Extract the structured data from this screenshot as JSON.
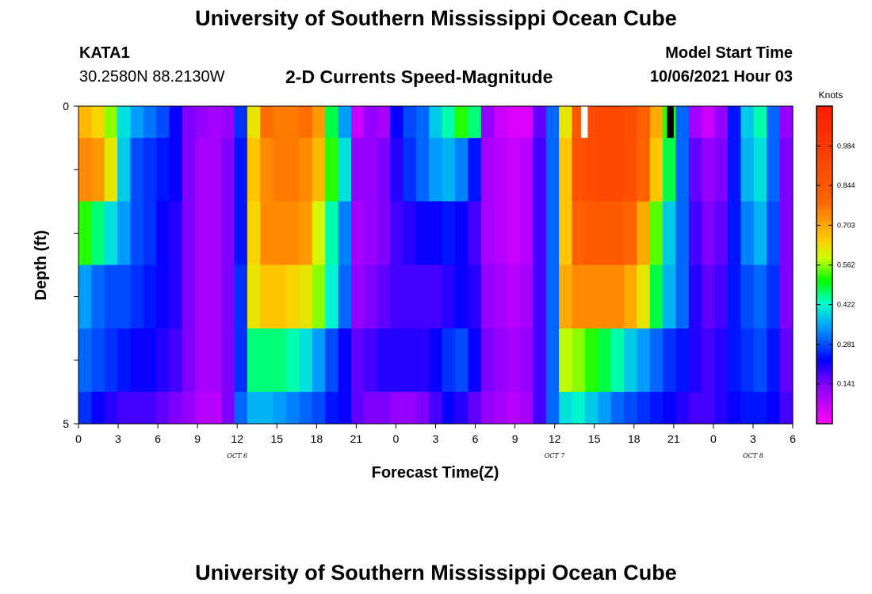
{
  "header": {
    "title": "University of Southern Mississippi Ocean Cube",
    "station_id": "KATA1",
    "station_location": "30.2580N  88.2130W",
    "chart_title": "2-D Currents Speed-Magnitude",
    "start_label": "Model Start Time",
    "start_time": "10/06/2021 Hour 03"
  },
  "footer": {
    "title": "University of Southern Mississippi Ocean Cube"
  },
  "chart_data": {
    "type": "heatmap",
    "title": "2-D Currents Speed-Magnitude",
    "xlabel": "Forecast Time(Z)",
    "ylabel": "Depth (ft)",
    "x_tick_labels": [
      "0",
      "3",
      "6",
      "9",
      "12",
      "15",
      "18",
      "21",
      "0",
      "3",
      "6",
      "9",
      "12",
      "15",
      "18",
      "21",
      "0",
      "3",
      "6"
    ],
    "day_labels": [
      {
        "text": "OCT 6",
        "tick_index": 4
      },
      {
        "text": "OCT 7",
        "tick_index": 12
      },
      {
        "text": "OCT 8",
        "tick_index": 17
      }
    ],
    "xlim": [
      0,
      54
    ],
    "y_tick_labels": [
      "0",
      "5"
    ],
    "ylim": [
      0,
      5
    ],
    "depth_rows": [
      0.0,
      0.5,
      1.5,
      2.5,
      3.5,
      4.5
    ],
    "colorbar": {
      "title": "Knots",
      "range": [
        0,
        1.125
      ],
      "tick_labels": [
        "0.141",
        "0.281",
        "0.422",
        "0.562",
        "0.703",
        "0.844",
        "0.984"
      ],
      "tick_values": [
        0.141,
        0.281,
        0.422,
        0.562,
        0.703,
        0.844,
        0.984
      ]
    },
    "series": [
      {
        "depth": 0.0,
        "values": [
          0.68,
          0.64,
          0.56,
          0.4,
          0.34,
          0.31,
          0.28,
          0.22,
          0.14,
          0.12,
          0.1,
          0.12,
          0.26,
          0.62,
          0.78,
          0.76,
          0.76,
          0.78,
          0.72,
          0.48,
          0.34,
          0.06,
          0.12,
          0.1,
          0.22,
          0.28,
          0.3,
          0.38,
          0.44,
          0.52,
          0.46,
          0.12,
          0.06,
          0.04,
          0.04,
          0.16,
          0.3,
          0.62,
          0.86,
          0.9,
          0.92,
          0.92,
          0.9,
          0.82,
          0.7,
          0.52,
          0.3,
          0.1,
          0.06,
          0.12,
          0.24,
          0.38,
          0.44,
          0.3,
          0.12
        ]
      },
      {
        "depth": 0.5,
        "values": [
          0.74,
          0.72,
          0.62,
          0.38,
          0.28,
          0.26,
          0.24,
          0.22,
          0.14,
          0.1,
          0.1,
          0.14,
          0.24,
          0.66,
          0.74,
          0.76,
          0.76,
          0.74,
          0.68,
          0.52,
          0.4,
          0.12,
          0.12,
          0.14,
          0.2,
          0.26,
          0.3,
          0.34,
          0.36,
          0.32,
          0.24,
          0.1,
          0.08,
          0.06,
          0.08,
          0.18,
          0.3,
          0.66,
          0.88,
          0.9,
          0.92,
          0.92,
          0.88,
          0.8,
          0.66,
          0.48,
          0.3,
          0.16,
          0.12,
          0.14,
          0.24,
          0.36,
          0.4,
          0.3,
          0.14
        ]
      },
      {
        "depth": 1.5,
        "values": [
          0.52,
          0.46,
          0.4,
          0.34,
          0.28,
          0.26,
          0.22,
          0.2,
          0.14,
          0.1,
          0.1,
          0.14,
          0.24,
          0.64,
          0.74,
          0.74,
          0.74,
          0.72,
          0.6,
          0.44,
          0.32,
          0.1,
          0.12,
          0.14,
          0.18,
          0.2,
          0.22,
          0.22,
          0.24,
          0.22,
          0.18,
          0.1,
          0.08,
          0.06,
          0.08,
          0.18,
          0.3,
          0.66,
          0.82,
          0.84,
          0.84,
          0.84,
          0.8,
          0.7,
          0.54,
          0.38,
          0.3,
          0.18,
          0.14,
          0.16,
          0.24,
          0.32,
          0.36,
          0.28,
          0.14
        ]
      },
      {
        "depth": 2.5,
        "values": [
          0.34,
          0.3,
          0.28,
          0.28,
          0.26,
          0.24,
          0.22,
          0.2,
          0.14,
          0.1,
          0.1,
          0.14,
          0.26,
          0.62,
          0.66,
          0.66,
          0.64,
          0.62,
          0.56,
          0.42,
          0.3,
          0.12,
          0.14,
          0.16,
          0.18,
          0.18,
          0.18,
          0.18,
          0.2,
          0.22,
          0.2,
          0.12,
          0.1,
          0.08,
          0.1,
          0.18,
          0.3,
          0.7,
          0.74,
          0.74,
          0.74,
          0.74,
          0.7,
          0.62,
          0.48,
          0.36,
          0.3,
          0.2,
          0.16,
          0.18,
          0.24,
          0.28,
          0.3,
          0.26,
          0.14
        ]
      },
      {
        "depth": 3.5,
        "values": [
          0.3,
          0.28,
          0.26,
          0.24,
          0.22,
          0.22,
          0.2,
          0.18,
          0.14,
          0.1,
          0.1,
          0.14,
          0.26,
          0.46,
          0.46,
          0.46,
          0.44,
          0.4,
          0.34,
          0.28,
          0.22,
          0.16,
          0.18,
          0.2,
          0.2,
          0.2,
          0.2,
          0.22,
          0.26,
          0.28,
          0.22,
          0.14,
          0.12,
          0.1,
          0.12,
          0.18,
          0.3,
          0.58,
          0.56,
          0.52,
          0.48,
          0.44,
          0.38,
          0.34,
          0.3,
          0.26,
          0.24,
          0.2,
          0.18,
          0.2,
          0.24,
          0.26,
          0.28,
          0.24,
          0.16
        ]
      },
      {
        "depth": 4.5,
        "values": [
          0.26,
          0.22,
          0.2,
          0.18,
          0.18,
          0.18,
          0.16,
          0.14,
          0.12,
          0.08,
          0.08,
          0.14,
          0.3,
          0.36,
          0.36,
          0.34,
          0.32,
          0.3,
          0.28,
          0.24,
          0.22,
          0.16,
          0.14,
          0.14,
          0.12,
          0.12,
          0.14,
          0.18,
          0.22,
          0.2,
          0.16,
          0.12,
          0.1,
          0.08,
          0.1,
          0.18,
          0.3,
          0.4,
          0.42,
          0.38,
          0.34,
          0.3,
          0.28,
          0.26,
          0.24,
          0.22,
          0.2,
          0.18,
          0.18,
          0.2,
          0.22,
          0.24,
          0.24,
          0.22,
          0.18
        ]
      }
    ],
    "annotations": [
      {
        "type": "missing-white",
        "depth": 0.0,
        "x_from": 38.0,
        "x_to": 38.5
      },
      {
        "type": "missing-black",
        "depth": 0.0,
        "x_from": 44.5,
        "x_to": 45.0
      }
    ]
  }
}
